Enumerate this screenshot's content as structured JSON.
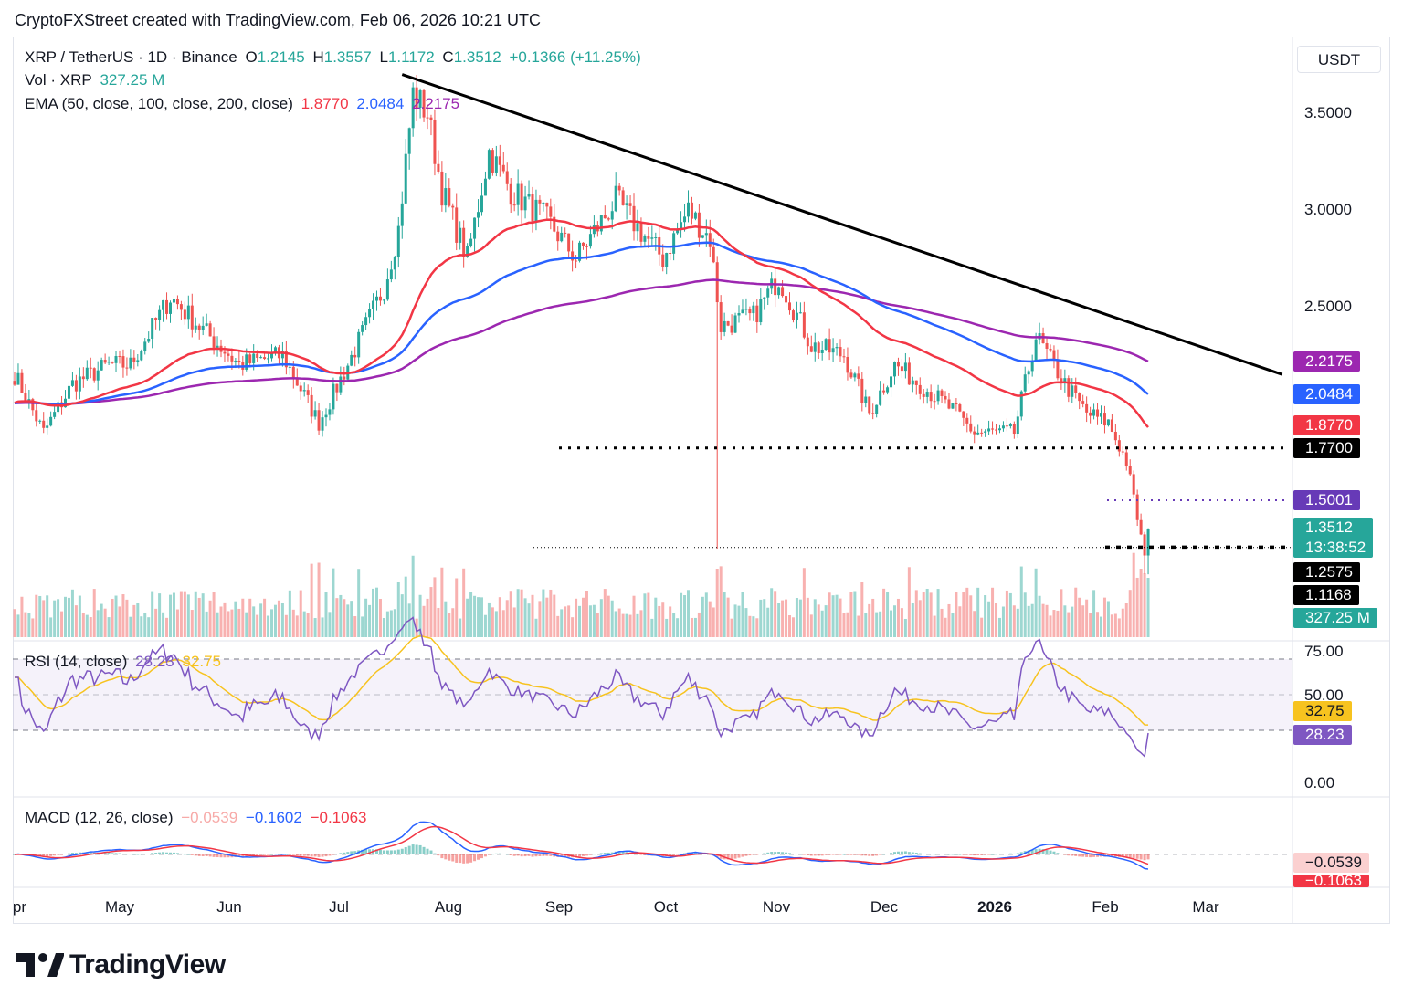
{
  "header": {
    "caption": "CryptoFXStreet created with TradingView.com, Feb 06, 2026 10:21 UTC"
  },
  "brand": {
    "name": "TradingView"
  },
  "currency": "USDT",
  "legend": {
    "symbol": "XRP / TetherUS · 1D · Binance",
    "open_label": "O",
    "open": "1.2145",
    "high_label": "H",
    "high": "1.3557",
    "low_label": "L",
    "low": "1.1172",
    "close_label": "C",
    "close": "1.3512",
    "change": "+0.1366 (+11.25%)",
    "vol_label": "Vol · XRP",
    "vol": "327.25 M",
    "ema_label": "EMA (50, close, 100, close, 200, close)",
    "ema50": "1.8770",
    "ema100": "2.0484",
    "ema200": "2.2175",
    "rsi_label": "RSI (14, close)",
    "rsi": "28.23",
    "rsi_ma": "32.75",
    "macd_label": "MACD (12, 26, close)",
    "macd_hist": "−0.0539",
    "macd": "−0.1602",
    "macd_signal": "−0.1063"
  },
  "price_axis": {
    "ticks": [
      "3.5000",
      "3.0000",
      "2.5000"
    ],
    "tags": {
      "ema200": "2.2175",
      "ema100": "2.0484",
      "ema50": "1.8770",
      "support1": "1.7700",
      "level2": "1.5001",
      "last": "1.3512",
      "countdown": "13:38:52",
      "support2": "1.2575",
      "low": "1.1168",
      "volume": "327.25 M"
    }
  },
  "rsi_axis": {
    "ticks": [
      "75.00",
      "50.00",
      "0.00"
    ],
    "ma_tag": "32.75",
    "rsi_tag": "28.23"
  },
  "macd_axis": {
    "hist_tag": "−0.0539",
    "signal_tag": "−0.1063"
  },
  "time_axis": [
    "Apr",
    "May",
    "Jun",
    "Jul",
    "Aug",
    "Sep",
    "Oct",
    "Nov",
    "Dec",
    "2026",
    "Feb",
    "Mar"
  ],
  "colors": {
    "up": "#26a69a",
    "down": "#ef5350",
    "ema50": "#f23645",
    "ema100": "#2962ff",
    "ema200": "#9c27b0",
    "rsi": "#7e57c2",
    "rsi_ma": "#f7c31f",
    "trend": "#000000"
  },
  "chart_data": {
    "type": "candlestick",
    "title": "XRP / TetherUS · 1D · Binance",
    "x_range": [
      "2025-03-30",
      "2026-02-06"
    ],
    "ylim": [
      1.0,
      3.75
    ],
    "anchor_closes": [
      {
        "date": "2025-03-30",
        "close": 2.15
      },
      {
        "date": "2025-04-07",
        "close": 1.85
      },
      {
        "date": "2025-04-15",
        "close": 2.1
      },
      {
        "date": "2025-04-25",
        "close": 2.2
      },
      {
        "date": "2025-05-01",
        "close": 2.2
      },
      {
        "date": "2025-05-12",
        "close": 2.55
      },
      {
        "date": "2025-05-20",
        "close": 2.4
      },
      {
        "date": "2025-05-31",
        "close": 2.2
      },
      {
        "date": "2025-06-12",
        "close": 2.25
      },
      {
        "date": "2025-06-22",
        "close": 1.9
      },
      {
        "date": "2025-06-30",
        "close": 2.2
      },
      {
        "date": "2025-07-10",
        "close": 2.6
      },
      {
        "date": "2025-07-14",
        "close": 2.9
      },
      {
        "date": "2025-07-18",
        "close": 3.6
      },
      {
        "date": "2025-07-22",
        "close": 3.5
      },
      {
        "date": "2025-07-26",
        "close": 3.1
      },
      {
        "date": "2025-08-02",
        "close": 2.75
      },
      {
        "date": "2025-08-08",
        "close": 3.3
      },
      {
        "date": "2025-08-14",
        "close": 3.1
      },
      {
        "date": "2025-08-24",
        "close": 2.95
      },
      {
        "date": "2025-09-01",
        "close": 2.75
      },
      {
        "date": "2025-09-12",
        "close": 3.05
      },
      {
        "date": "2025-09-25",
        "close": 2.75
      },
      {
        "date": "2025-10-02",
        "close": 3.0
      },
      {
        "date": "2025-10-08",
        "close": 2.85
      },
      {
        "date": "2025-10-11",
        "close": 2.4
      },
      {
        "date": "2025-10-20",
        "close": 2.45
      },
      {
        "date": "2025-10-27",
        "close": 2.65
      },
      {
        "date": "2025-11-05",
        "close": 2.3
      },
      {
        "date": "2025-11-14",
        "close": 2.25
      },
      {
        "date": "2025-11-21",
        "close": 1.95
      },
      {
        "date": "2025-11-28",
        "close": 2.2
      },
      {
        "date": "2025-12-05",
        "close": 2.1
      },
      {
        "date": "2025-12-15",
        "close": 1.95
      },
      {
        "date": "2025-12-20",
        "close": 1.85
      },
      {
        "date": "2025-12-31",
        "close": 1.85
      },
      {
        "date": "2026-01-06",
        "close": 2.35
      },
      {
        "date": "2026-01-14",
        "close": 2.1
      },
      {
        "date": "2026-01-20",
        "close": 1.95
      },
      {
        "date": "2026-01-26",
        "close": 1.9
      },
      {
        "date": "2026-01-31",
        "close": 1.7
      },
      {
        "date": "2026-02-05",
        "close": 1.2145
      },
      {
        "date": "2026-02-06",
        "close": 1.3512
      }
    ],
    "ema50_last": 1.877,
    "ema100_last": 2.0484,
    "ema200_last": 2.2175,
    "trendline": [
      {
        "date": "2025-07-15",
        "price": 3.7
      },
      {
        "date": "2026-03-15",
        "price": 2.15
      }
    ],
    "horizontal_levels": [
      1.77,
      1.5001,
      1.3512,
      1.2575
    ],
    "rsi": {
      "value": 28.23,
      "ma": 32.75,
      "ylim": [
        0,
        100
      ],
      "bands": [
        30,
        50,
        70
      ]
    },
    "macd": {
      "hist": -0.0539,
      "macd": -0.1602,
      "signal": -0.1063
    }
  }
}
